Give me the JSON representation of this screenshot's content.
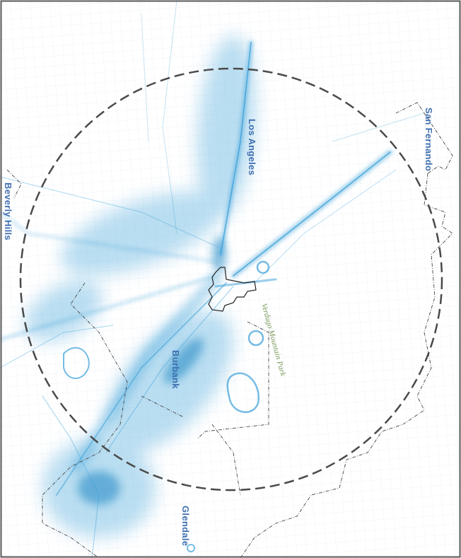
{
  "map": {
    "colors": {
      "paper": "#ffffff",
      "frame": "#5a5a5a",
      "tracks": "#3aa0d8",
      "tracks_dense": "#1f86c4",
      "city_label": "#3f6fb0",
      "park_label": "#7a9a5a",
      "boundary": "#444444",
      "radius_circle": "#4a4a4a",
      "grid": "#c9d6e6"
    },
    "labels": {
      "los_angeles": "Los Angeles",
      "san_fernando": "San Fernando",
      "beverly_hills": "Beverly Hills",
      "burbank": "Burbank",
      "glendale": "Glendale",
      "park": "Verdugo Mountain Park"
    }
  }
}
